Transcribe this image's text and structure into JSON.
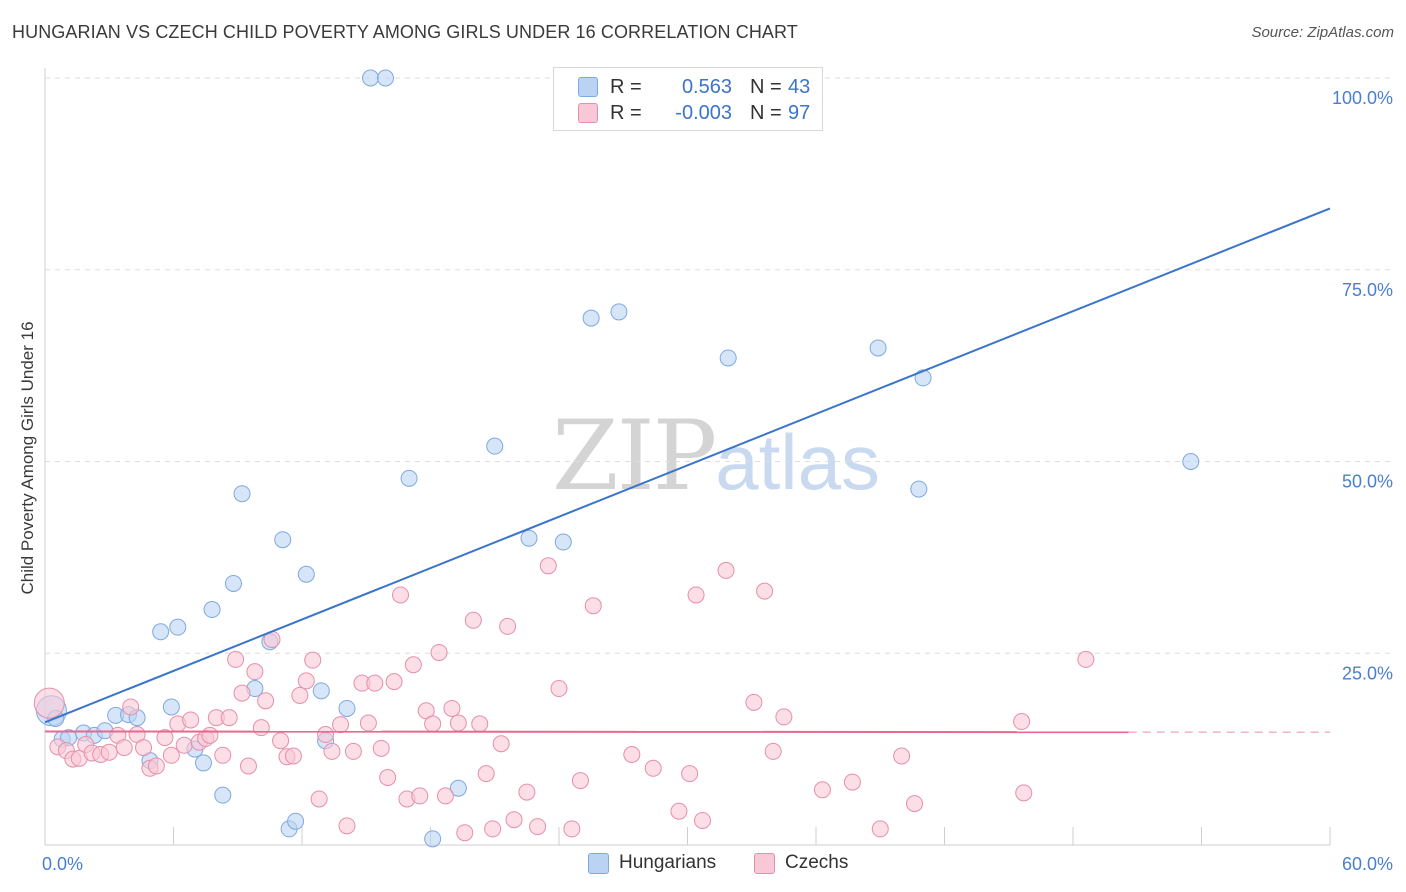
{
  "title": "HUNGARIAN VS CZECH CHILD POVERTY AMONG GIRLS UNDER 16 CORRELATION CHART",
  "source": "Source: ZipAtlas.com",
  "watermark": {
    "zip": "ZIP",
    "atlas": "atlas"
  },
  "legend": {
    "r_label": "R =",
    "n_label": "N =",
    "rows": [
      {
        "r": "0.563",
        "n": "43",
        "fill": "#bad3f3",
        "stroke": "#7ea9e0"
      },
      {
        "r": "-0.003",
        "n": "97",
        "fill": "#f8c8d6",
        "stroke": "#e68fab"
      }
    ]
  },
  "bottom_legend": [
    {
      "label": "Hungarians",
      "fill": "#bad3f3",
      "stroke": "#7ea9e0"
    },
    {
      "label": "Czechs",
      "fill": "#f8c8d6",
      "stroke": "#e68fab"
    }
  ],
  "chart_data": {
    "type": "scatter",
    "title": "HUNGARIAN VS CZECH CHILD POVERTY AMONG GIRLS UNDER 16 CORRELATION CHART",
    "xlabel": "",
    "ylabel": "Child Poverty Among Girls Under 16",
    "xlim": [
      0,
      60
    ],
    "ylim": [
      0,
      100
    ],
    "x_tick_labels": [
      "0.0%",
      "60.0%"
    ],
    "y_ticks": [
      25,
      50,
      75,
      100
    ],
    "y_tick_labels": [
      "25.0%",
      "50.0%",
      "75.0%",
      "100.0%"
    ],
    "grid": true,
    "series": [
      {
        "name": "Hungarians",
        "color": "#3b74c9",
        "fill": "#bad3f3",
        "stroke": "#7ea9e0",
        "trend": {
          "x0": 0,
          "y0": 16.0,
          "x1": 60,
          "y1": 83.0,
          "dashed_after": null
        },
        "points": [
          [
            0.3,
            17.5
          ],
          [
            0.5,
            16.5
          ],
          [
            0.8,
            13.8
          ],
          [
            1.1,
            14.0
          ],
          [
            1.8,
            14.6
          ],
          [
            2.3,
            14.3
          ],
          [
            2.8,
            14.9
          ],
          [
            3.3,
            16.9
          ],
          [
            3.9,
            17.0
          ],
          [
            4.3,
            16.6
          ],
          [
            4.9,
            11.0
          ],
          [
            5.4,
            27.8
          ],
          [
            5.9,
            18.0
          ],
          [
            6.2,
            28.4
          ],
          [
            7.0,
            12.5
          ],
          [
            7.4,
            10.7
          ],
          [
            7.8,
            30.7
          ],
          [
            8.3,
            6.5
          ],
          [
            8.8,
            34.1
          ],
          [
            9.2,
            45.8
          ],
          [
            9.8,
            20.4
          ],
          [
            10.5,
            26.5
          ],
          [
            11.1,
            39.8
          ],
          [
            11.4,
            2.1
          ],
          [
            11.7,
            3.1
          ],
          [
            12.2,
            35.3
          ],
          [
            12.9,
            20.1
          ],
          [
            13.1,
            13.6
          ],
          [
            14.1,
            17.8
          ],
          [
            15.2,
            100.0
          ],
          [
            15.9,
            100.0
          ],
          [
            17.0,
            47.8
          ],
          [
            18.1,
            0.8
          ],
          [
            19.3,
            7.4
          ],
          [
            21.0,
            52.0
          ],
          [
            22.6,
            40.0
          ],
          [
            24.2,
            39.5
          ],
          [
            25.5,
            68.7
          ],
          [
            26.8,
            69.5
          ],
          [
            31.9,
            63.5
          ],
          [
            38.9,
            64.8
          ],
          [
            40.8,
            46.4
          ],
          [
            41.0,
            60.9
          ],
          [
            53.5,
            50.0
          ]
        ]
      },
      {
        "name": "Czechs",
        "color": "#e8688f",
        "fill": "#f8c8d6",
        "stroke": "#e68fab",
        "trend": {
          "x0": 0,
          "y0": 14.8,
          "x1": 60,
          "y1": 14.7,
          "dashed_after": 50.6
        },
        "points": [
          [
            0.2,
            18.5
          ],
          [
            0.6,
            12.8
          ],
          [
            1.0,
            12.3
          ],
          [
            1.3,
            11.2
          ],
          [
            1.6,
            11.3
          ],
          [
            1.9,
            13.1
          ],
          [
            2.2,
            12.0
          ],
          [
            2.6,
            11.8
          ],
          [
            3.0,
            12.1
          ],
          [
            3.4,
            14.3
          ],
          [
            3.7,
            12.7
          ],
          [
            4.0,
            18.0
          ],
          [
            4.3,
            14.4
          ],
          [
            4.6,
            12.7
          ],
          [
            4.9,
            10.0
          ],
          [
            5.2,
            10.3
          ],
          [
            5.6,
            14.0
          ],
          [
            5.9,
            11.7
          ],
          [
            6.2,
            15.8
          ],
          [
            6.5,
            13.0
          ],
          [
            6.8,
            16.3
          ],
          [
            7.2,
            13.4
          ],
          [
            7.5,
            13.9
          ],
          [
            7.7,
            14.3
          ],
          [
            8.0,
            16.6
          ],
          [
            8.3,
            11.7
          ],
          [
            8.6,
            16.6
          ],
          [
            8.9,
            24.2
          ],
          [
            9.2,
            19.8
          ],
          [
            9.5,
            10.3
          ],
          [
            9.8,
            22.6
          ],
          [
            10.1,
            15.3
          ],
          [
            10.3,
            18.8
          ],
          [
            10.6,
            26.8
          ],
          [
            11.0,
            13.6
          ],
          [
            11.3,
            11.5
          ],
          [
            11.6,
            11.6
          ],
          [
            11.9,
            19.5
          ],
          [
            12.2,
            21.4
          ],
          [
            12.5,
            24.1
          ],
          [
            12.8,
            6.0
          ],
          [
            13.1,
            14.4
          ],
          [
            13.4,
            12.2
          ],
          [
            13.8,
            15.7
          ],
          [
            14.1,
            2.5
          ],
          [
            14.4,
            12.2
          ],
          [
            14.8,
            21.1
          ],
          [
            15.1,
            15.9
          ],
          [
            15.4,
            21.1
          ],
          [
            15.7,
            12.6
          ],
          [
            16.0,
            8.8
          ],
          [
            16.3,
            21.3
          ],
          [
            16.6,
            32.6
          ],
          [
            16.9,
            6.0
          ],
          [
            17.2,
            23.5
          ],
          [
            17.5,
            6.4
          ],
          [
            17.8,
            17.5
          ],
          [
            18.1,
            15.8
          ],
          [
            18.4,
            25.1
          ],
          [
            18.7,
            6.4
          ],
          [
            19.0,
            17.8
          ],
          [
            19.3,
            15.9
          ],
          [
            19.6,
            1.6
          ],
          [
            20.0,
            29.3
          ],
          [
            20.3,
            15.8
          ],
          [
            20.6,
            9.3
          ],
          [
            20.9,
            2.1
          ],
          [
            21.3,
            13.2
          ],
          [
            21.6,
            28.5
          ],
          [
            21.9,
            3.3
          ],
          [
            22.5,
            6.9
          ],
          [
            23.0,
            2.4
          ],
          [
            23.5,
            36.4
          ],
          [
            24.0,
            20.4
          ],
          [
            24.6,
            2.1
          ],
          [
            25.0,
            8.4
          ],
          [
            25.6,
            31.2
          ],
          [
            27.4,
            11.8
          ],
          [
            28.4,
            10.0
          ],
          [
            29.6,
            4.4
          ],
          [
            30.1,
            9.3
          ],
          [
            30.4,
            32.6
          ],
          [
            30.7,
            3.2
          ],
          [
            31.8,
            35.8
          ],
          [
            33.1,
            18.6
          ],
          [
            33.6,
            33.1
          ],
          [
            34.0,
            12.2
          ],
          [
            34.5,
            16.7
          ],
          [
            36.3,
            7.2
          ],
          [
            37.7,
            8.2
          ],
          [
            39.0,
            2.1
          ],
          [
            40.0,
            11.6
          ],
          [
            40.6,
            5.4
          ],
          [
            45.6,
            16.1
          ],
          [
            45.7,
            6.8
          ],
          [
            48.6,
            24.2
          ]
        ]
      }
    ]
  }
}
